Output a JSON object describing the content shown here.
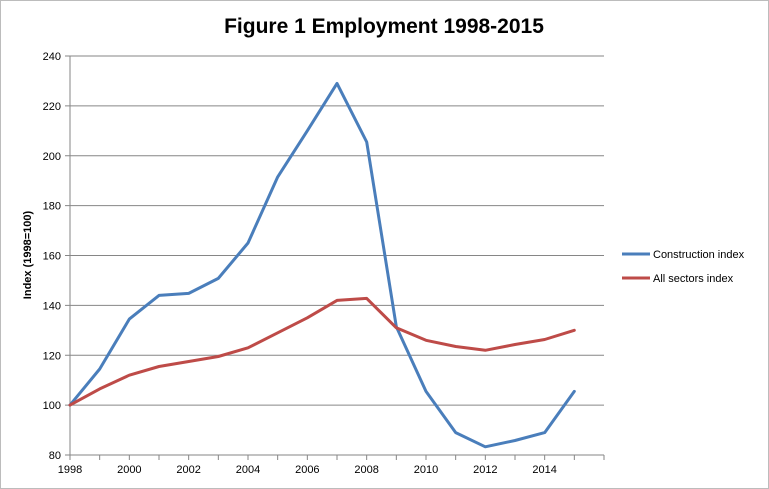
{
  "chart_data": {
    "type": "line",
    "title": "Figure 1 Employment 1998-2015",
    "xlabel": "",
    "ylabel": "Index  (1998=100)",
    "x": [
      1998,
      1999,
      2000,
      2001,
      2002,
      2003,
      2004,
      2005,
      2006,
      2007,
      2008,
      2009,
      2010,
      2011,
      2012,
      2013,
      2014,
      2015
    ],
    "xticks": [
      "1998",
      "2000",
      "2002",
      "2004",
      "2006",
      "2008",
      "2010",
      "2012",
      "2014"
    ],
    "yticks": [
      "80",
      "100",
      "120",
      "140",
      "160",
      "180",
      "200",
      "220",
      "240"
    ],
    "xlim": [
      1998,
      2016
    ],
    "ylim": [
      80,
      240
    ],
    "grid": "horizontal",
    "legend_position": "right",
    "series": [
      {
        "name": "Construction index",
        "color": "#4a7ebb",
        "values": [
          100,
          114.5,
          134.5,
          144,
          144.8,
          150.8,
          165,
          191.5,
          210,
          229,
          205.5,
          131.5,
          105.5,
          89,
          83.3,
          85.8,
          89,
          105.5
        ]
      },
      {
        "name": "All sectors index",
        "color": "#be4b48",
        "values": [
          100,
          106.5,
          112,
          115.5,
          117.5,
          119.5,
          123,
          129,
          135,
          142,
          142.8,
          131,
          126,
          123.5,
          122,
          124.3,
          126.3,
          130
        ]
      }
    ]
  }
}
